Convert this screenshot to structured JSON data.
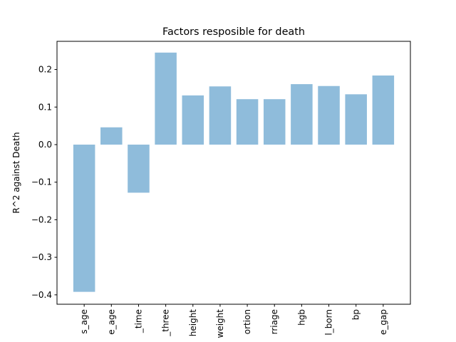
{
  "chart_data": {
    "type": "bar",
    "title": "Factors resposible for death",
    "xlabel": "",
    "ylabel": "R^2 against Death",
    "ylim": [
      -0.425,
      0.275
    ],
    "yticks": [
      -0.4,
      -0.3,
      -0.2,
      -0.1,
      0.0,
      0.1,
      0.2
    ],
    "ytick_labels": [
      "−0.4",
      "−0.3",
      "−0.2",
      "−0.1",
      "0.0",
      "0.1",
      "0.2"
    ],
    "categories": [
      "s_age",
      "e_age",
      "_time",
      "_three",
      "height",
      "weight",
      "ortion",
      "rriage",
      "hgb",
      "l_born",
      "bp",
      "e_gap"
    ],
    "values": [
      -0.392,
      0.046,
      -0.128,
      0.245,
      0.131,
      0.155,
      0.121,
      0.121,
      0.161,
      0.156,
      0.134,
      0.184
    ],
    "bar_color": "#8fbcdb",
    "grid": false
  }
}
